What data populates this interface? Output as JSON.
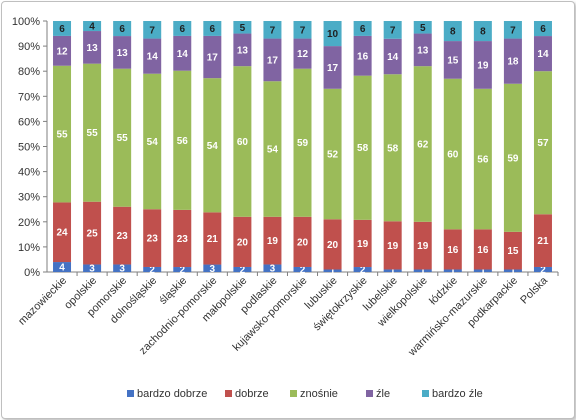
{
  "chart_data": {
    "type": "bar",
    "stacked": "percent",
    "categories": [
      "mazowieckie",
      "opolskie",
      "pomorskie",
      "dolnośląskie",
      "śląskie",
      "zachodnio-pomorskie",
      "małopolskie",
      "podlaskie",
      "kujawsko-pomorskie",
      "lubuskie",
      "świętokrzyskie",
      "lubelskie",
      "wielkopolskie",
      "łódzkie",
      "warmińsko-mazurskie",
      "podkarpackie",
      "Polska"
    ],
    "series": [
      {
        "name": "bardzo dobrze",
        "color": "#4472C4",
        "values": [
          4,
          3,
          3,
          2,
          2,
          3,
          2,
          3,
          2,
          1,
          2,
          1,
          1,
          1,
          1,
          1,
          2
        ]
      },
      {
        "name": "dobrze",
        "color": "#C0504D",
        "values": [
          24,
          25,
          23,
          23,
          23,
          21,
          20,
          19,
          20,
          20,
          19,
          19,
          19,
          16,
          16,
          15,
          21
        ]
      },
      {
        "name": "znośnie",
        "color": "#9BBB59",
        "values": [
          55,
          55,
          55,
          54,
          56,
          54,
          60,
          54,
          59,
          52,
          58,
          58,
          62,
          60,
          56,
          59,
          57
        ]
      },
      {
        "name": "źle",
        "color": "#8064A2",
        "values": [
          12,
          13,
          13,
          14,
          14,
          17,
          13,
          17,
          12,
          17,
          16,
          14,
          13,
          15,
          19,
          18,
          14
        ]
      },
      {
        "name": "bardzo źle",
        "color": "#4BACC6",
        "values": [
          6,
          4,
          6,
          7,
          6,
          6,
          5,
          7,
          7,
          10,
          6,
          7,
          5,
          8,
          8,
          7,
          6
        ]
      }
    ],
    "ylim": [
      0,
      100
    ],
    "yticks": [
      "0%",
      "10%",
      "20%",
      "30%",
      "40%",
      "50%",
      "60%",
      "70%",
      "80%",
      "90%",
      "100%"
    ],
    "legend_position": "bottom",
    "grid": false
  }
}
